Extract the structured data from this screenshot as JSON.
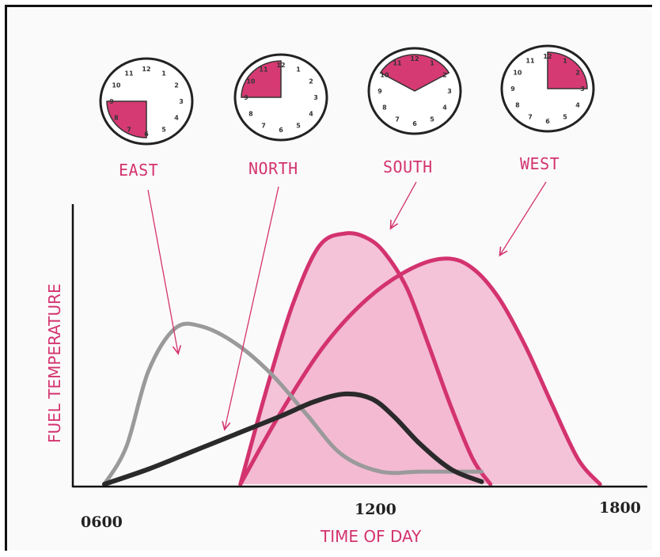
{
  "chart_data": {
    "type": "area",
    "title": "",
    "xlabel": "TIME OF DAY",
    "ylabel": "FUEL TEMPERATURE",
    "x_ticks": [
      "0600",
      "1200",
      "1800"
    ],
    "xlim": [
      6,
      18
    ],
    "ylim": [
      0,
      1
    ],
    "grid": false,
    "legend": "labels above plot",
    "colors": {
      "pink": "#d3336f",
      "pink_fill": "#f2b9d1",
      "gray": "#9a9a9a",
      "dark": "#2a2a2a"
    },
    "series": [
      {
        "name": "EAST",
        "color": "#9a9a9a",
        "fill": false,
        "x": [
          6.0,
          6.5,
          7.0,
          7.6,
          8.2,
          9.0,
          9.8,
          10.6,
          11.4,
          12.3,
          13.2,
          14.0,
          14.6
        ],
        "y": [
          0.0,
          0.15,
          0.45,
          0.62,
          0.63,
          0.56,
          0.44,
          0.28,
          0.12,
          0.05,
          0.05,
          0.05,
          0.05
        ]
      },
      {
        "name": "NORTH",
        "color": "#2a2a2a",
        "fill": false,
        "x": [
          6.0,
          7.0,
          8.0,
          9.0,
          10.0,
          10.8,
          11.5,
          12.1,
          12.6,
          13.2,
          13.9,
          14.6
        ],
        "y": [
          0.0,
          0.06,
          0.13,
          0.2,
          0.27,
          0.33,
          0.36,
          0.34,
          0.27,
          0.16,
          0.06,
          0.01
        ]
      },
      {
        "name": "SOUTH",
        "color": "#d3336f",
        "fill": true,
        "x": [
          9.1,
          9.7,
          10.3,
          10.9,
          11.5,
          12.0,
          12.4,
          12.9,
          13.4,
          13.9,
          14.4,
          14.8
        ],
        "y": [
          0.0,
          0.38,
          0.72,
          0.95,
          1.0,
          0.98,
          0.92,
          0.78,
          0.55,
          0.31,
          0.1,
          0.0
        ]
      },
      {
        "name": "WEST",
        "color": "#d3336f",
        "fill": true,
        "x": [
          9.1,
          10.0,
          11.0,
          12.0,
          13.0,
          13.8,
          14.4,
          15.0,
          15.6,
          16.2,
          16.8,
          17.3
        ],
        "y": [
          0.0,
          0.28,
          0.55,
          0.74,
          0.86,
          0.9,
          0.86,
          0.74,
          0.55,
          0.32,
          0.1,
          0.0
        ]
      }
    ],
    "clocks": [
      {
        "name": "EAST",
        "start_hour": 6,
        "end_hour": 9
      },
      {
        "name": "NORTH",
        "start_hour": 9,
        "end_hour": 12
      },
      {
        "name": "SOUTH",
        "start_hour": 10,
        "end_hour": 14
      },
      {
        "name": "WEST",
        "start_hour": 12,
        "end_hour": 15
      }
    ]
  }
}
